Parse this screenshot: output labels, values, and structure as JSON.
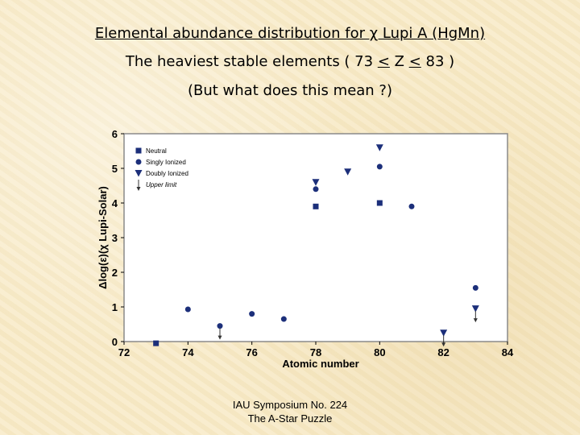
{
  "title": {
    "line1": "Elemental abundance distribution for χ Lupi A (HgMn)",
    "line2_a": "The heaviest stable elements  ( 73 ",
    "line2_le1": "<",
    "line2_b": " Z ",
    "line2_le2": "<",
    "line2_c": " 83 )",
    "line3": "(But what does this mean ?)"
  },
  "footer": {
    "line1": "IAU Symposium No. 224",
    "line2": "The A-Star Puzzle"
  },
  "chart_data": {
    "type": "scatter",
    "xlabel": "Atomic number",
    "ylabel": "Δlog(ε)(χ Lupi-Solar)",
    "xlim": [
      72,
      84
    ],
    "ylim": [
      0,
      6
    ],
    "xticks": [
      "72",
      "74",
      "76",
      "78",
      "80",
      "82",
      "84"
    ],
    "yticks": [
      "0",
      "1",
      "2",
      "3",
      "4",
      "5",
      "6"
    ],
    "legend_position": "top-left",
    "legend": [
      "Neutral",
      "Singly Ionized",
      "Doubly Ionized",
      "Upper limit"
    ],
    "series": [
      {
        "name": "Neutral",
        "marker": "square",
        "points": [
          {
            "x": 73,
            "y": -0.05
          },
          {
            "x": 78,
            "y": 3.9
          },
          {
            "x": 80,
            "y": 4.0
          }
        ]
      },
      {
        "name": "Singly Ionized",
        "marker": "circle",
        "points": [
          {
            "x": 74,
            "y": 0.93
          },
          {
            "x": 75,
            "y": 0.45
          },
          {
            "x": 76,
            "y": 0.8
          },
          {
            "x": 77,
            "y": 0.65
          },
          {
            "x": 78,
            "y": 4.4
          },
          {
            "x": 80,
            "y": 5.05
          },
          {
            "x": 81,
            "y": 3.9
          },
          {
            "x": 83,
            "y": 1.55
          }
        ]
      },
      {
        "name": "Doubly Ionized",
        "marker": "triangle",
        "points": [
          {
            "x": 78,
            "y": 4.6
          },
          {
            "x": 79,
            "y": 4.9
          },
          {
            "x": 80,
            "y": 5.6
          },
          {
            "x": 82,
            "y": 0.25
          },
          {
            "x": 83,
            "y": 0.95
          }
        ]
      }
    ],
    "upper_limits": [
      {
        "x": 75,
        "y": 0.45
      },
      {
        "x": 82,
        "y": 0.25
      },
      {
        "x": 83,
        "y": 0.95
      }
    ]
  }
}
